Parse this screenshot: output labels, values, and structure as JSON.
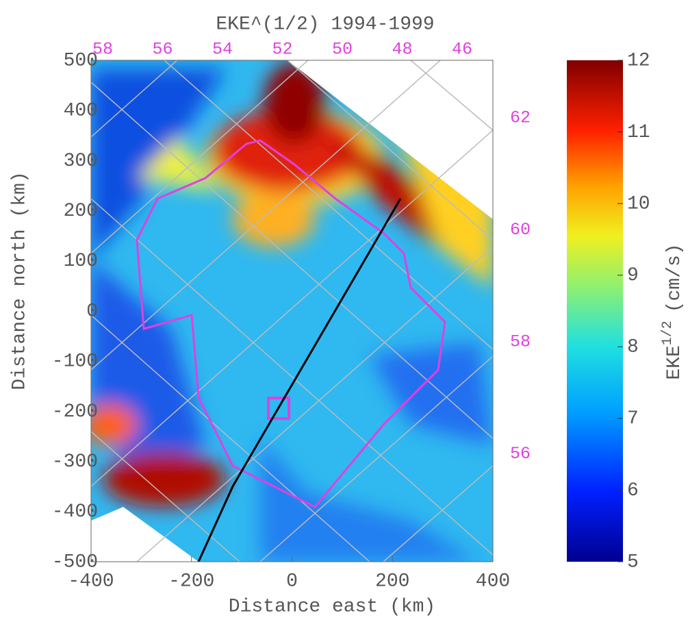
{
  "chart_data": {
    "type": "contour",
    "title": "EKE^(1/2) 1994-1999",
    "xlabel": "Distance east (km)",
    "ylabel": "Distance north (km)",
    "xlim": [
      -400,
      400
    ],
    "xticks": [
      -400,
      -200,
      0,
      200,
      400
    ],
    "ylim": [
      -500,
      500
    ],
    "yticks": [
      -500,
      -400,
      -300,
      -200,
      -100,
      0,
      100,
      200,
      300,
      400,
      500
    ],
    "lon_labels": [
      "58",
      "56",
      "54",
      "52",
      "50",
      "48",
      "46"
    ],
    "lat_labels": [
      "62",
      "60",
      "58",
      "56"
    ],
    "colorbar": {
      "label": "EKE",
      "label_superscript": "1/2",
      "label_unit": "(cm/s)",
      "lim": [
        5,
        12
      ],
      "ticks": [
        5,
        6,
        7,
        8,
        9,
        10,
        11,
        12
      ]
    }
  }
}
